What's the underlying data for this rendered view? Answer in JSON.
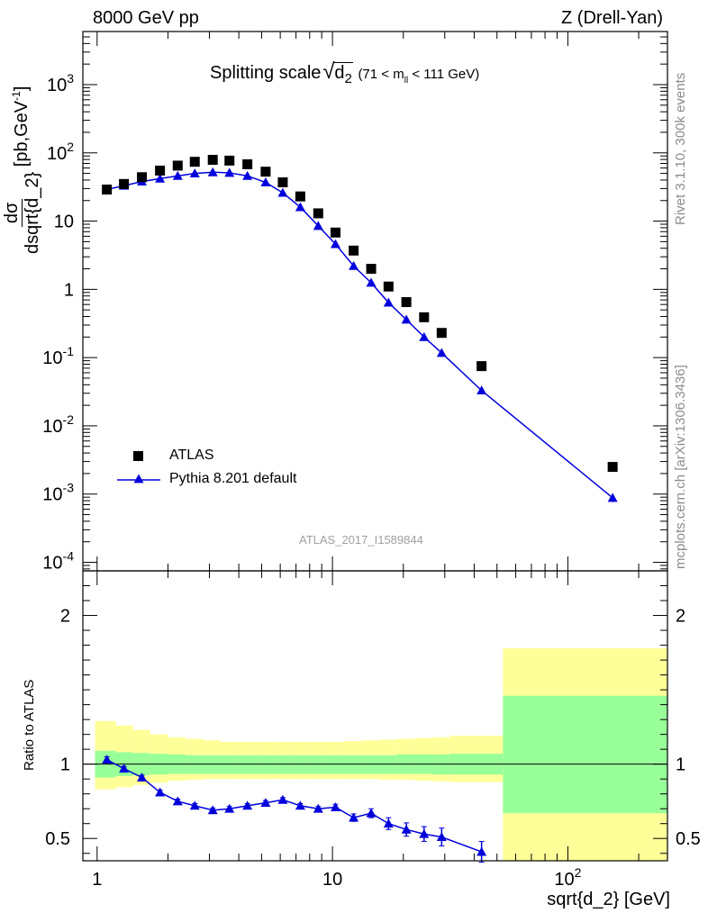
{
  "header": {
    "left": "8000 GeV pp",
    "right": "Z (Drell-Yan)"
  },
  "side_text": {
    "rivet": "Rivet 3.1.10,  300k events",
    "mcplots": "mcplots.cern.ch [arXiv:1306.3436]"
  },
  "analysis_tag": "ATLAS_2017_I1589844",
  "plot_title": {
    "main": "Splitting scale",
    "sqrt_arg": "d",
    "sqrt_sub": "2",
    "range_pre": "(71 < m",
    "range_sub": "ll",
    "range_post": " < 111 GeV)"
  },
  "axes": {
    "xlabel": "sqrt{d_2} [GeV]",
    "ylabel_num": "dσ",
    "ylabel_den": "dsqrt{d_2}",
    "ylabel_unit": "[pb,GeV",
    "ylabel_unit_sup": "-1",
    "ylabel_unit_end": "]",
    "ratio_ylabel": "Ratio to ATLAS"
  },
  "legend": {
    "atlas": "ATLAS",
    "pythia": "Pythia 8.201 default"
  },
  "colors": {
    "data": "#000000",
    "mc": "#0000dd",
    "band_inner": "#99ff99",
    "band_outer": "#ffff99"
  },
  "chart_data": {
    "type": "scatter",
    "xscale": "log",
    "xlim": [
      0.87,
      265
    ],
    "upper": {
      "yscale": "log",
      "ylim": [
        7.5e-05,
        6000
      ],
      "x_ticks": [
        1,
        10,
        100
      ],
      "y_ticks": [
        {
          "v": 0.0001,
          "base": "10",
          "exp": "-4"
        },
        {
          "v": 0.001,
          "base": "10",
          "exp": "-3"
        },
        {
          "v": 0.01,
          "base": "10",
          "exp": "-2"
        },
        {
          "v": 0.1,
          "base": "10",
          "exp": "-1"
        },
        {
          "v": 1,
          "base": "1",
          "exp": ""
        },
        {
          "v": 10,
          "base": "10",
          "exp": ""
        },
        {
          "v": 100,
          "base": "10",
          "exp": "2"
        },
        {
          "v": 1000,
          "base": "10",
          "exp": "3"
        }
      ],
      "series": [
        {
          "name": "ATLAS",
          "marker": "square",
          "x": [
            1.1,
            1.3,
            1.55,
            1.85,
            2.2,
            2.6,
            3.1,
            3.65,
            4.35,
            5.2,
            6.15,
            7.3,
            8.7,
            10.3,
            12.3,
            14.6,
            17.3,
            20.6,
            24.5,
            29.1,
            43,
            155
          ],
          "y": [
            29,
            35,
            44,
            55,
            65,
            74,
            79,
            77,
            68,
            53,
            37,
            23,
            13,
            6.8,
            3.7,
            2.0,
            1.1,
            0.65,
            0.39,
            0.23,
            0.075,
            0.0025
          ]
        },
        {
          "name": "Pythia 8.201 default",
          "marker": "triangle",
          "x": [
            1.1,
            1.3,
            1.55,
            1.85,
            2.2,
            2.6,
            3.1,
            3.65,
            4.35,
            5.2,
            6.15,
            7.3,
            8.7,
            10.3,
            12.3,
            14.6,
            17.3,
            20.6,
            24.5,
            29.1,
            43,
            155
          ],
          "y": [
            29,
            33,
            38,
            42,
            46,
            50,
            52,
            51,
            46,
            37,
            26,
            16,
            8.5,
            4.6,
            2.2,
            1.25,
            0.64,
            0.36,
            0.2,
            0.117,
            0.033,
            0.00088
          ]
        }
      ]
    },
    "ratio": {
      "yscale": "linear",
      "ylim": [
        0.35,
        2.3
      ],
      "y_ticks": [
        0.5,
        1,
        2
      ],
      "bins": [
        0.98,
        1.2,
        1.42,
        1.68,
        2.0,
        2.38,
        2.82,
        3.35,
        3.98,
        4.73,
        5.62,
        6.68,
        7.94,
        9.44,
        11.2,
        13.3,
        15.8,
        18.8,
        22.4,
        26.6,
        31.6,
        53,
        265
      ],
      "band_inner": [
        [
          0.91,
          1.09
        ],
        [
          0.92,
          1.08
        ],
        [
          0.925,
          1.075
        ],
        [
          0.93,
          1.07
        ],
        [
          0.935,
          1.065
        ],
        [
          0.935,
          1.06
        ],
        [
          0.935,
          1.06
        ],
        [
          0.935,
          1.06
        ],
        [
          0.935,
          1.06
        ],
        [
          0.935,
          1.06
        ],
        [
          0.935,
          1.06
        ],
        [
          0.935,
          1.06
        ],
        [
          0.935,
          1.06
        ],
        [
          0.935,
          1.06
        ],
        [
          0.935,
          1.06
        ],
        [
          0.935,
          1.06
        ],
        [
          0.935,
          1.06
        ],
        [
          0.935,
          1.065
        ],
        [
          0.935,
          1.065
        ],
        [
          0.93,
          1.065
        ],
        [
          0.93,
          1.07
        ],
        [
          0.67,
          1.46
        ]
      ],
      "band_outer": [
        [
          0.83,
          1.29
        ],
        [
          0.845,
          1.26
        ],
        [
          0.86,
          1.23
        ],
        [
          0.875,
          1.2
        ],
        [
          0.89,
          1.18
        ],
        [
          0.895,
          1.17
        ],
        [
          0.9,
          1.16
        ],
        [
          0.9,
          1.15
        ],
        [
          0.9,
          1.15
        ],
        [
          0.9,
          1.15
        ],
        [
          0.9,
          1.15
        ],
        [
          0.9,
          1.15
        ],
        [
          0.9,
          1.15
        ],
        [
          0.9,
          1.15
        ],
        [
          0.9,
          1.155
        ],
        [
          0.9,
          1.16
        ],
        [
          0.895,
          1.165
        ],
        [
          0.895,
          1.17
        ],
        [
          0.89,
          1.175
        ],
        [
          0.885,
          1.18
        ],
        [
          0.88,
          1.19
        ],
        [
          0.3,
          1.78
        ]
      ],
      "mc": {
        "name": "Pythia 8.201 default",
        "x": [
          1.1,
          1.3,
          1.55,
          1.85,
          2.2,
          2.6,
          3.1,
          3.65,
          4.35,
          5.2,
          6.15,
          7.3,
          8.7,
          10.3,
          12.3,
          14.6,
          17.3,
          20.6,
          24.5,
          29.1,
          43
        ],
        "y": [
          1.03,
          0.97,
          0.91,
          0.81,
          0.75,
          0.72,
          0.69,
          0.7,
          0.72,
          0.74,
          0.76,
          0.72,
          0.7,
          0.71,
          0.64,
          0.67,
          0.6,
          0.56,
          0.53,
          0.51,
          0.41
        ],
        "err": [
          0.02,
          0.015,
          0.015,
          0.015,
          0.015,
          0.015,
          0.015,
          0.015,
          0.015,
          0.015,
          0.015,
          0.015,
          0.015,
          0.02,
          0.025,
          0.03,
          0.04,
          0.045,
          0.05,
          0.06,
          0.07
        ]
      }
    }
  }
}
